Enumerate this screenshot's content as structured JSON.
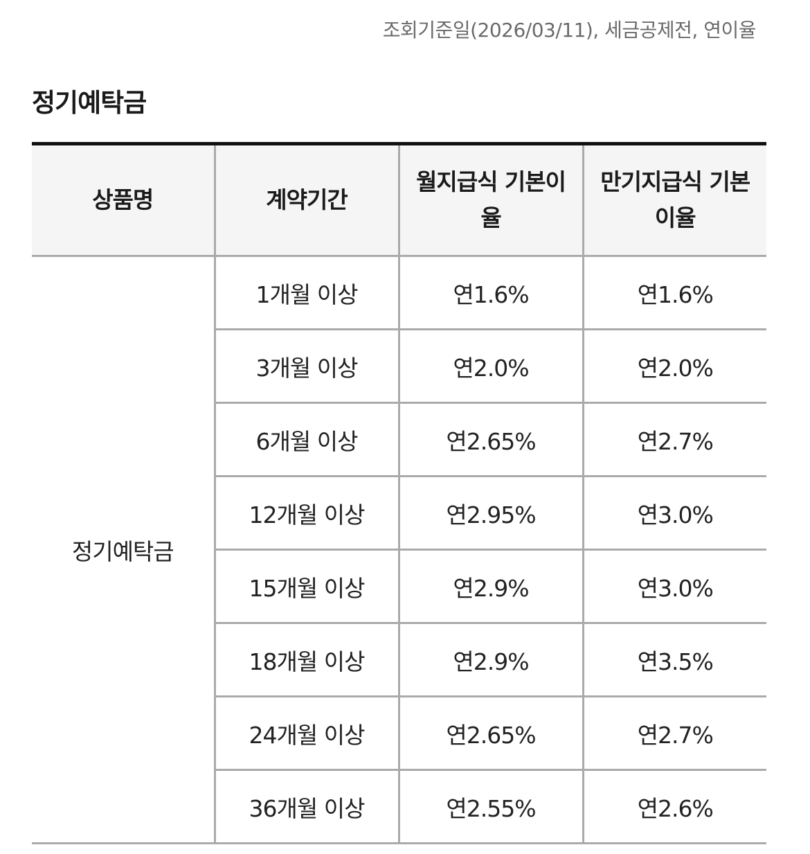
{
  "reference_note": "조회기준일(2026/03/11), 세금공제전, 연이율",
  "section_title": "정기예탁금",
  "table": {
    "headers": {
      "product": "상품명",
      "term": "계약기간",
      "monthly": "월지급식 기본이율",
      "maturity": "만기지급식 기본이율"
    },
    "product_name": "정기예탁금",
    "rows": [
      {
        "term": "1개월 이상",
        "monthly": "연1.6%",
        "maturity": "연1.6%"
      },
      {
        "term": "3개월 이상",
        "monthly": "연2.0%",
        "maturity": "연2.0%"
      },
      {
        "term": "6개월 이상",
        "monthly": "연2.65%",
        "maturity": "연2.7%"
      },
      {
        "term": "12개월 이상",
        "monthly": "연2.95%",
        "maturity": "연3.0%"
      },
      {
        "term": "15개월 이상",
        "monthly": "연2.9%",
        "maturity": "연3.0%"
      },
      {
        "term": "18개월 이상",
        "monthly": "연2.9%",
        "maturity": "연3.5%"
      },
      {
        "term": "24개월 이상",
        "monthly": "연2.65%",
        "maturity": "연2.7%"
      },
      {
        "term": "36개월 이상",
        "monthly": "연2.55%",
        "maturity": "연2.6%"
      }
    ]
  }
}
